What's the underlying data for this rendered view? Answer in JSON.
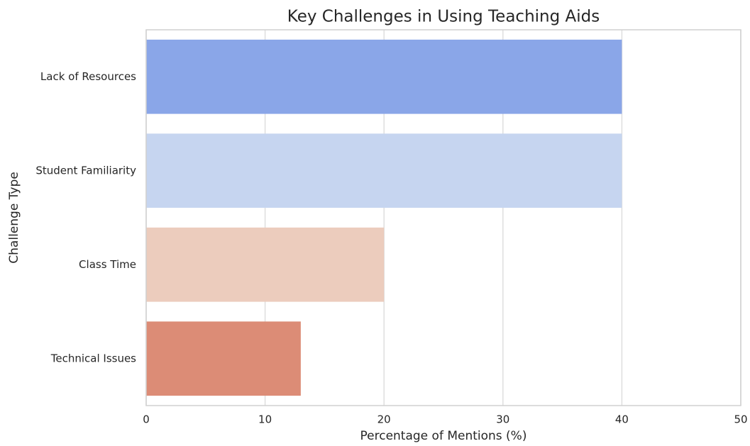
{
  "chart_data": {
    "type": "bar",
    "orientation": "horizontal",
    "title": "Key Challenges in Using Teaching Aids",
    "xlabel": "Percentage of Mentions (%)",
    "ylabel": "Challenge Type",
    "categories": [
      "Lack of Resources",
      "Student Familiarity",
      "Class Time",
      "Technical Issues"
    ],
    "values": [
      40,
      40,
      20,
      13
    ],
    "colors": [
      "#8aa6e8",
      "#c6d5f0",
      "#ecccbd",
      "#dc8c76"
    ],
    "xlim": [
      0,
      50
    ],
    "xticks": [
      0,
      10,
      20,
      30,
      40,
      50
    ],
    "grid": true
  }
}
